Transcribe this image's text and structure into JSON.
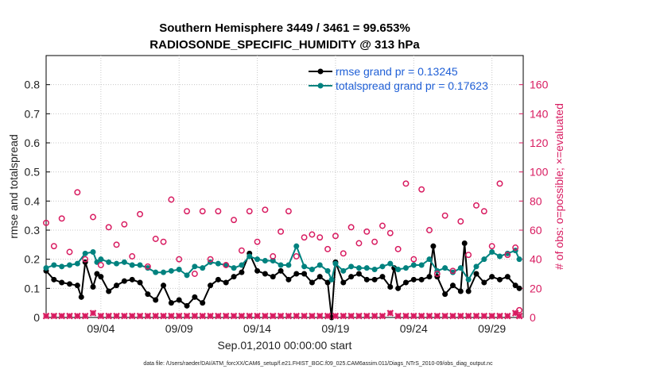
{
  "chart_data": {
    "type": "line",
    "title_line1": "Southern Hemisphere 3449 / 3461 = 99.653%",
    "title_line2": "RADIOSONDE_SPECIFIC_HUMIDITY @ 313 hPa",
    "xlabel": "Sep.01,2010 00:00:00 start",
    "ylabel_left": "rmse and totalspread",
    "ylabel_right": "# of obs: o=possible; ×=evaluated",
    "xlim": [
      0.5,
      31
    ],
    "ylim_left": [
      0,
      0.9
    ],
    "ylim_right": [
      0,
      180
    ],
    "x_ticks": [
      {
        "x": 4,
        "label": "09/04"
      },
      {
        "x": 9,
        "label": "09/09"
      },
      {
        "x": 14,
        "label": "09/14"
      },
      {
        "x": 19,
        "label": "09/19"
      },
      {
        "x": 24,
        "label": "09/24"
      },
      {
        "x": 29,
        "label": "09/29"
      }
    ],
    "y_ticks_left": [
      "0",
      "0.1",
      "0.2",
      "0.3",
      "0.4",
      "0.5",
      "0.6",
      "0.7",
      "0.8"
    ],
    "y_ticks_right": [
      "0",
      "20",
      "40",
      "60",
      "80",
      "100",
      "120",
      "140",
      "160"
    ],
    "legend": {
      "position": "top-right",
      "entries": [
        {
          "name": "rmse grand pr = 0.13245",
          "color": "#000000"
        },
        {
          "name": "totalspread grand pr = 0.17623",
          "color": "#00827f"
        }
      ]
    },
    "series": [
      {
        "name": "rmse",
        "color": "#000000",
        "axis": "left",
        "points": [
          [
            0.5,
            0.16
          ],
          [
            1,
            0.13
          ],
          [
            1.5,
            0.12
          ],
          [
            2,
            0.115
          ],
          [
            2.5,
            0.11
          ],
          [
            2.75,
            0.07
          ],
          [
            3,
            0.19
          ],
          [
            3.5,
            0.105
          ],
          [
            3.75,
            0.15
          ],
          [
            4,
            0.14
          ],
          [
            4.5,
            0.09
          ],
          [
            5,
            0.11
          ],
          [
            5.5,
            0.125
          ],
          [
            6,
            0.13
          ],
          [
            6.5,
            0.12
          ],
          [
            7,
            0.08
          ],
          [
            7.5,
            0.06
          ],
          [
            8,
            0.11
          ],
          [
            8.5,
            0.05
          ],
          [
            9,
            0.06
          ],
          [
            9.5,
            0.04
          ],
          [
            10,
            0.07
          ],
          [
            10.5,
            0.05
          ],
          [
            11,
            0.11
          ],
          [
            11.5,
            0.13
          ],
          [
            12,
            0.12
          ],
          [
            12.5,
            0.14
          ],
          [
            13,
            0.155
          ],
          [
            13.5,
            0.22
          ],
          [
            14,
            0.16
          ],
          [
            14.5,
            0.15
          ],
          [
            15,
            0.14
          ],
          [
            15.5,
            0.16
          ],
          [
            16,
            0.13
          ],
          [
            16.5,
            0.15
          ],
          [
            17,
            0.15
          ],
          [
            17.5,
            0.12
          ],
          [
            18,
            0.14
          ],
          [
            18.5,
            0.12
          ],
          [
            18.75,
            0.0
          ],
          [
            19,
            0.19
          ],
          [
            19.5,
            0.12
          ],
          [
            20,
            0.14
          ],
          [
            20.5,
            0.15
          ],
          [
            21,
            0.13
          ],
          [
            21.5,
            0.13
          ],
          [
            22,
            0.14
          ],
          [
            22.5,
            0.105
          ],
          [
            22.75,
            0.17
          ],
          [
            23,
            0.1
          ],
          [
            23.5,
            0.12
          ],
          [
            24,
            0.13
          ],
          [
            24.5,
            0.13
          ],
          [
            25,
            0.14
          ],
          [
            25.25,
            0.245
          ],
          [
            25.5,
            0.14
          ],
          [
            26,
            0.08
          ],
          [
            26.5,
            0.11
          ],
          [
            27,
            0.09
          ],
          [
            27.25,
            0.255
          ],
          [
            27.5,
            0.09
          ],
          [
            28,
            0.15
          ],
          [
            28.5,
            0.12
          ],
          [
            29,
            0.14
          ],
          [
            29.5,
            0.13
          ],
          [
            30,
            0.14
          ],
          [
            30.5,
            0.11
          ],
          [
            30.75,
            0.1
          ]
        ]
      },
      {
        "name": "totalspread",
        "color": "#00827f",
        "axis": "left",
        "points": [
          [
            0.5,
            0.17
          ],
          [
            1,
            0.18
          ],
          [
            1.5,
            0.175
          ],
          [
            2,
            0.18
          ],
          [
            2.5,
            0.185
          ],
          [
            3,
            0.22
          ],
          [
            3.5,
            0.225
          ],
          [
            3.75,
            0.19
          ],
          [
            4,
            0.2
          ],
          [
            4.5,
            0.19
          ],
          [
            5,
            0.185
          ],
          [
            5.5,
            0.19
          ],
          [
            6,
            0.18
          ],
          [
            6.5,
            0.18
          ],
          [
            7,
            0.17
          ],
          [
            7.5,
            0.155
          ],
          [
            8,
            0.155
          ],
          [
            8.5,
            0.16
          ],
          [
            9,
            0.165
          ],
          [
            9.5,
            0.145
          ],
          [
            10,
            0.175
          ],
          [
            10.5,
            0.17
          ],
          [
            11,
            0.19
          ],
          [
            11.5,
            0.185
          ],
          [
            12,
            0.18
          ],
          [
            12.5,
            0.17
          ],
          [
            13,
            0.18
          ],
          [
            13.5,
            0.21
          ],
          [
            14,
            0.2
          ],
          [
            14.5,
            0.195
          ],
          [
            15,
            0.195
          ],
          [
            15.5,
            0.18
          ],
          [
            16,
            0.18
          ],
          [
            16.5,
            0.245
          ],
          [
            17,
            0.175
          ],
          [
            17.5,
            0.165
          ],
          [
            18,
            0.18
          ],
          [
            18.5,
            0.16
          ],
          [
            18.75,
            0.13
          ],
          [
            19,
            0.185
          ],
          [
            19.5,
            0.16
          ],
          [
            20,
            0.175
          ],
          [
            20.5,
            0.17
          ],
          [
            21,
            0.17
          ],
          [
            21.5,
            0.165
          ],
          [
            22,
            0.175
          ],
          [
            22.5,
            0.185
          ],
          [
            23,
            0.165
          ],
          [
            23.5,
            0.17
          ],
          [
            24,
            0.18
          ],
          [
            24.5,
            0.18
          ],
          [
            25,
            0.2
          ],
          [
            25.5,
            0.16
          ],
          [
            26,
            0.17
          ],
          [
            26.5,
            0.155
          ],
          [
            27,
            0.17
          ],
          [
            27.5,
            0.13
          ],
          [
            28,
            0.175
          ],
          [
            28.5,
            0.2
          ],
          [
            29,
            0.225
          ],
          [
            29.5,
            0.21
          ],
          [
            30,
            0.22
          ],
          [
            30.5,
            0.23
          ],
          [
            30.75,
            0.2
          ]
        ]
      },
      {
        "name": "obs possible",
        "color": "#d81b60",
        "axis": "right",
        "marker": "o",
        "points": [
          [
            0.5,
            65
          ],
          [
            1,
            49
          ],
          [
            1.5,
            68
          ],
          [
            2,
            45
          ],
          [
            2.5,
            86
          ],
          [
            3,
            40
          ],
          [
            3.5,
            69
          ],
          [
            4,
            36
          ],
          [
            4.5,
            62
          ],
          [
            5,
            50
          ],
          [
            5.5,
            64
          ],
          [
            6,
            42
          ],
          [
            6.5,
            71
          ],
          [
            7,
            35
          ],
          [
            7.5,
            54
          ],
          [
            8,
            52
          ],
          [
            8.5,
            81
          ],
          [
            9,
            40
          ],
          [
            9.5,
            73
          ],
          [
            10,
            30
          ],
          [
            10.5,
            73
          ],
          [
            11,
            40
          ],
          [
            11.5,
            73
          ],
          [
            12,
            36
          ],
          [
            12.5,
            67
          ],
          [
            13,
            46
          ],
          [
            13.5,
            73
          ],
          [
            14,
            52
          ],
          [
            14.5,
            74
          ],
          [
            15,
            42
          ],
          [
            15.5,
            59
          ],
          [
            16,
            73
          ],
          [
            16.5,
            42
          ],
          [
            17,
            55
          ],
          [
            17.5,
            57
          ],
          [
            18,
            55
          ],
          [
            18.5,
            47
          ],
          [
            19,
            56
          ],
          [
            19.5,
            44
          ],
          [
            20,
            62
          ],
          [
            20.5,
            51
          ],
          [
            21,
            59
          ],
          [
            21.5,
            52
          ],
          [
            22,
            63
          ],
          [
            22.5,
            58
          ],
          [
            23,
            47
          ],
          [
            23.5,
            92
          ],
          [
            24,
            40
          ],
          [
            24.5,
            88
          ],
          [
            25,
            60
          ],
          [
            25.5,
            30
          ],
          [
            26,
            70
          ],
          [
            26.5,
            32
          ],
          [
            27,
            66
          ],
          [
            27.5,
            43
          ],
          [
            28,
            77
          ],
          [
            28.5,
            73
          ],
          [
            29,
            49
          ],
          [
            29.5,
            92
          ],
          [
            30,
            43
          ],
          [
            30.5,
            48
          ],
          [
            30.75,
            5
          ]
        ]
      },
      {
        "name": "obs evaluated",
        "color": "#d81b60",
        "axis": "right",
        "marker": "x",
        "points": [
          [
            0.5,
            1
          ],
          [
            1,
            1
          ],
          [
            1.5,
            1
          ],
          [
            2,
            1
          ],
          [
            2.5,
            1
          ],
          [
            3,
            1
          ],
          [
            3.5,
            3
          ],
          [
            4,
            1
          ],
          [
            4.5,
            1
          ],
          [
            5,
            1
          ],
          [
            5.5,
            1
          ],
          [
            6,
            1
          ],
          [
            6.5,
            1
          ],
          [
            7,
            1
          ],
          [
            7.5,
            1
          ],
          [
            8,
            1
          ],
          [
            8.5,
            1
          ],
          [
            9,
            1
          ],
          [
            9.5,
            1
          ],
          [
            10,
            1
          ],
          [
            10.5,
            1
          ],
          [
            11,
            1
          ],
          [
            11.5,
            1
          ],
          [
            12,
            1
          ],
          [
            12.5,
            1
          ],
          [
            13,
            1
          ],
          [
            13.5,
            1
          ],
          [
            14,
            1
          ],
          [
            14.5,
            1
          ],
          [
            15,
            1
          ],
          [
            15.5,
            1
          ],
          [
            16,
            1
          ],
          [
            16.5,
            1
          ],
          [
            17,
            1
          ],
          [
            17.5,
            1
          ],
          [
            18,
            1
          ],
          [
            18.5,
            1
          ],
          [
            19,
            1
          ],
          [
            19.5,
            1
          ],
          [
            20,
            1
          ],
          [
            20.5,
            1
          ],
          [
            21,
            1
          ],
          [
            21.5,
            1
          ],
          [
            22,
            1
          ],
          [
            22.5,
            3
          ],
          [
            23,
            1
          ],
          [
            23.5,
            1
          ],
          [
            24,
            1
          ],
          [
            24.5,
            1
          ],
          [
            25,
            1
          ],
          [
            25.5,
            1
          ],
          [
            26,
            1
          ],
          [
            26.5,
            1
          ],
          [
            27,
            1
          ],
          [
            27.5,
            1
          ],
          [
            28,
            1
          ],
          [
            28.5,
            1
          ],
          [
            29,
            1
          ],
          [
            29.5,
            1
          ],
          [
            30,
            1
          ],
          [
            30.5,
            3
          ],
          [
            30.75,
            1
          ]
        ]
      }
    ],
    "footer": "data file: /Users/raeder/DAI/ATM_forcXX/CAM6_setup/f.e21.FHIST_BGC.f09_025.CAM6assim.011/Diags_NTrS_2010-09/obs_diag_output.nc"
  }
}
